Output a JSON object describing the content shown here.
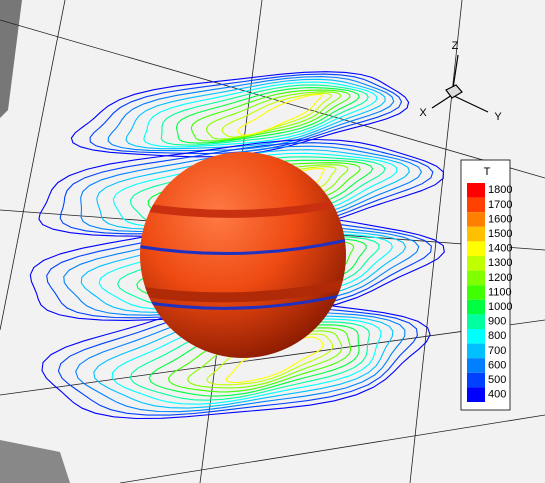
{
  "axes": {
    "x": "X",
    "y": "Y",
    "z": "Z"
  },
  "legend": {
    "title": "T",
    "levels": [
      {
        "label": "1800",
        "color": "#ff0000"
      },
      {
        "label": "1700",
        "color": "#ff4000"
      },
      {
        "label": "1600",
        "color": "#ff8000"
      },
      {
        "label": "1500",
        "color": "#ffc000"
      },
      {
        "label": "1400",
        "color": "#ffff00"
      },
      {
        "label": "1300",
        "color": "#c0ff00"
      },
      {
        "label": "1200",
        "color": "#80ff00"
      },
      {
        "label": "1100",
        "color": "#40ff00"
      },
      {
        "label": "1000",
        "color": "#00ff40"
      },
      {
        "label": "900",
        "color": "#00ff9f"
      },
      {
        "label": "800",
        "color": "#00ffff"
      },
      {
        "label": "700",
        "color": "#00c0ff"
      },
      {
        "label": "600",
        "color": "#0080ff"
      },
      {
        "label": "500",
        "color": "#0040ff"
      },
      {
        "label": "400",
        "color": "#0000ff"
      }
    ]
  }
}
